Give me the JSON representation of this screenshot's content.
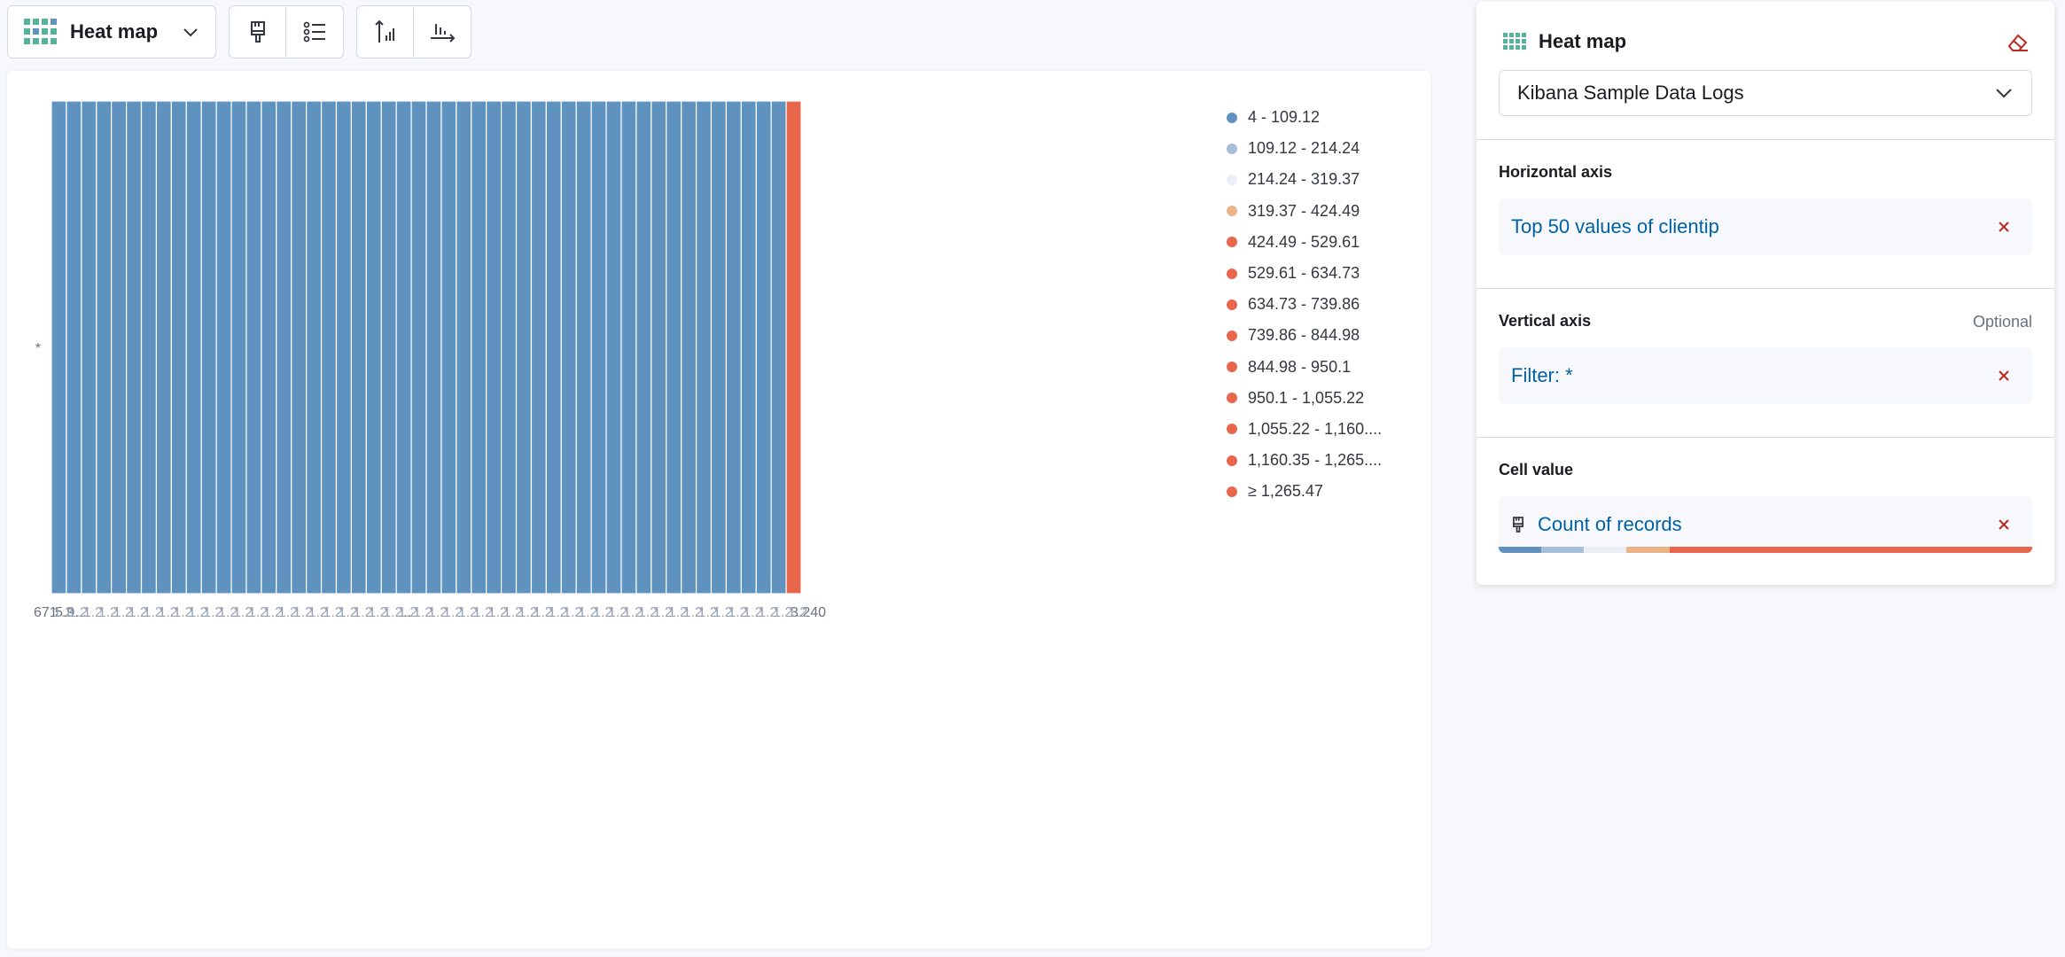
{
  "toolbar": {
    "vis_type_label": "Heat map"
  },
  "chart_data": {
    "type": "heatmap",
    "y_categories": [
      "*"
    ],
    "x_category_count": 50,
    "x_tick_labels": [
      "671",
      "5.9...",
      "...",
      "3.240"
    ],
    "values_note": "",
    "cells": [
      {
        "bin": 0
      },
      {
        "bin": 0
      },
      {
        "bin": 0
      },
      {
        "bin": 0
      },
      {
        "bin": 0
      },
      {
        "bin": 0
      },
      {
        "bin": 0
      },
      {
        "bin": 0
      },
      {
        "bin": 0
      },
      {
        "bin": 0
      },
      {
        "bin": 0
      },
      {
        "bin": 0
      },
      {
        "bin": 0
      },
      {
        "bin": 0
      },
      {
        "bin": 0
      },
      {
        "bin": 0
      },
      {
        "bin": 0
      },
      {
        "bin": 0
      },
      {
        "bin": 0
      },
      {
        "bin": 0
      },
      {
        "bin": 0
      },
      {
        "bin": 0
      },
      {
        "bin": 0
      },
      {
        "bin": 0
      },
      {
        "bin": 0
      },
      {
        "bin": 0
      },
      {
        "bin": 0
      },
      {
        "bin": 0
      },
      {
        "bin": 0
      },
      {
        "bin": 0
      },
      {
        "bin": 0
      },
      {
        "bin": 0
      },
      {
        "bin": 0
      },
      {
        "bin": 0
      },
      {
        "bin": 0
      },
      {
        "bin": 0
      },
      {
        "bin": 0
      },
      {
        "bin": 0
      },
      {
        "bin": 0
      },
      {
        "bin": 0
      },
      {
        "bin": 0
      },
      {
        "bin": 0
      },
      {
        "bin": 0
      },
      {
        "bin": 0
      },
      {
        "bin": 0
      },
      {
        "bin": 0
      },
      {
        "bin": 0
      },
      {
        "bin": 0
      },
      {
        "bin": 0
      },
      {
        "bin": 12
      }
    ],
    "legend": [
      {
        "label": "4 - 109.12",
        "color": "#6092c0"
      },
      {
        "label": "109.12 - 214.24",
        "color": "#a8bfda"
      },
      {
        "label": "214.24 - 319.37",
        "color": "#ebeff5"
      },
      {
        "label": "319.37 - 424.49",
        "color": "#ecb385"
      },
      {
        "label": "424.49 - 529.61",
        "color": "#e7664c"
      },
      {
        "label": "529.61 - 634.73",
        "color": "#e7664c"
      },
      {
        "label": "634.73 - 739.86",
        "color": "#e7664c"
      },
      {
        "label": "739.86 - 844.98",
        "color": "#e7664c"
      },
      {
        "label": "844.98 - 950.1",
        "color": "#e7664c"
      },
      {
        "label": "950.1 - 1,055.22",
        "color": "#e7664c"
      },
      {
        "label": "1,055.22 - 1,160....",
        "color": "#e7664c"
      },
      {
        "label": "1,160.35 - 1,265....",
        "color": "#e7664c"
      },
      {
        "label": "≥ 1,265.47",
        "color": "#e7664c"
      }
    ],
    "legend_position": "right"
  },
  "config": {
    "title": "Heat map",
    "datasource": "Kibana Sample Data Logs",
    "horizontal_axis": {
      "label": "Horizontal axis",
      "value": "Top 50 values of clientip"
    },
    "vertical_axis": {
      "label": "Vertical axis",
      "optional": "Optional",
      "value": "Filter: *"
    },
    "cell_value": {
      "label": "Cell value",
      "value": "Count of records"
    },
    "palette": [
      {
        "color": "#6092c0",
        "share": 8
      },
      {
        "color": "#a8bfda",
        "share": 8
      },
      {
        "color": "#ebeff5",
        "share": 8
      },
      {
        "color": "#ecb385",
        "share": 8
      },
      {
        "color": "#e7664c",
        "share": 68
      }
    ],
    "colors": {
      "link": "#0061a6",
      "danger": "#bd271e"
    }
  }
}
